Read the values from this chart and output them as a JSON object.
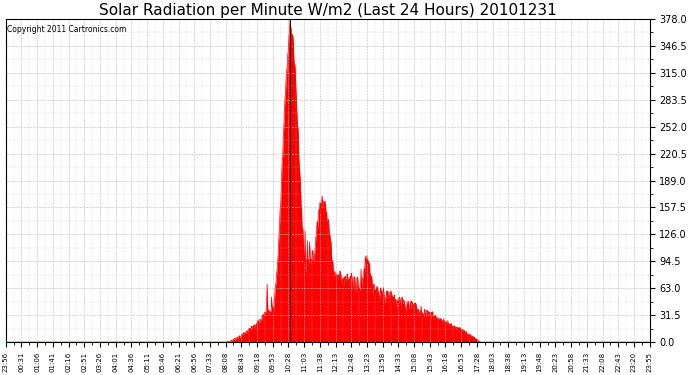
{
  "title": "Solar Radiation per Minute W/m2 (Last 24 Hours) 20101231",
  "copyright": "Copyright 2011 Cartronics.com",
  "ymin": 0.0,
  "ymax": 378.0,
  "yticks": [
    0.0,
    31.5,
    63.0,
    94.5,
    126.0,
    157.5,
    189.0,
    220.5,
    252.0,
    283.5,
    315.0,
    346.5,
    378.0
  ],
  "fill_color": "#ff0000",
  "line_color": "#ff0000",
  "background_color": "#ffffff",
  "grid_color": "#bbbbbb",
  "hline_color": "#ff0000",
  "title_fontsize": 11,
  "xtick_labels": [
    "23:56",
    "00:31",
    "01:06",
    "01:41",
    "02:16",
    "02:51",
    "03:26",
    "04:01",
    "04:36",
    "05:11",
    "05:46",
    "06:21",
    "06:56",
    "07:33",
    "08:08",
    "08:43",
    "09:18",
    "09:53",
    "10:28",
    "11:03",
    "11:38",
    "12:13",
    "12:48",
    "13:23",
    "13:58",
    "14:33",
    "15:08",
    "15:43",
    "16:18",
    "16:53",
    "17:28",
    "18:03",
    "18:38",
    "19:13",
    "19:48",
    "20:23",
    "20:58",
    "21:33",
    "22:08",
    "22:43",
    "23:20",
    "23:55"
  ],
  "num_minutes": 1440
}
